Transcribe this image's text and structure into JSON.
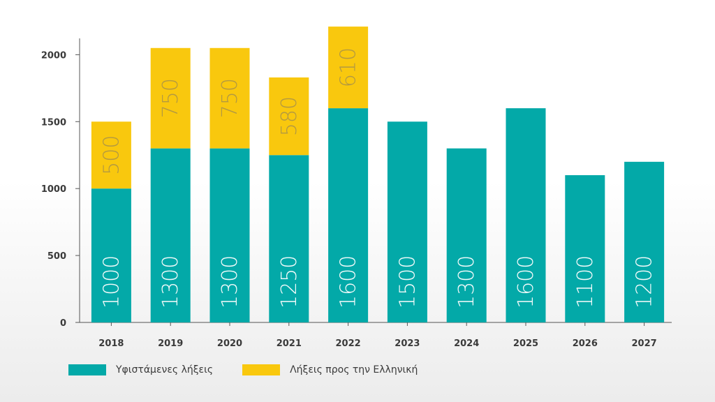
{
  "chart_data": {
    "type": "bar",
    "stacked": true,
    "categories": [
      "2018",
      "2019",
      "2020",
      "2021",
      "2022",
      "2023",
      "2024",
      "2025",
      "2026",
      "2027"
    ],
    "series": [
      {
        "name": "Υφιστάμενες λήξεις",
        "color": "#03a9a8",
        "values": [
          1000,
          1300,
          1300,
          1250,
          1600,
          1500,
          1300,
          1600,
          1100,
          1200
        ],
        "labels": [
          "1000",
          "1300",
          "1300",
          "1250",
          "1600",
          "1500",
          "1300",
          "1600",
          "1100",
          "1200"
        ]
      },
      {
        "name": "Λήξεις προς την Ελληνική",
        "color": "#f9c80e",
        "values": [
          500,
          750,
          750,
          580,
          610,
          0,
          0,
          0,
          0,
          0
        ],
        "labels": [
          "500",
          "750",
          "750",
          "580",
          "610",
          "",
          "",
          "",
          "",
          ""
        ]
      }
    ],
    "ylim": [
      0,
      2200
    ],
    "yticks": [
      0,
      500,
      1000,
      1500,
      2000
    ],
    "ytick_labels": [
      "0",
      "500",
      "1000",
      "1500",
      "2000"
    ],
    "legend_position": "bottom-left",
    "grid": false
  },
  "legend": {
    "items": [
      {
        "label": "Υφιστάμενες λήξεις",
        "color": "#03a9a8"
      },
      {
        "label": "Λήξεις προς την Ελληνική",
        "color": "#f9c80e"
      }
    ]
  }
}
